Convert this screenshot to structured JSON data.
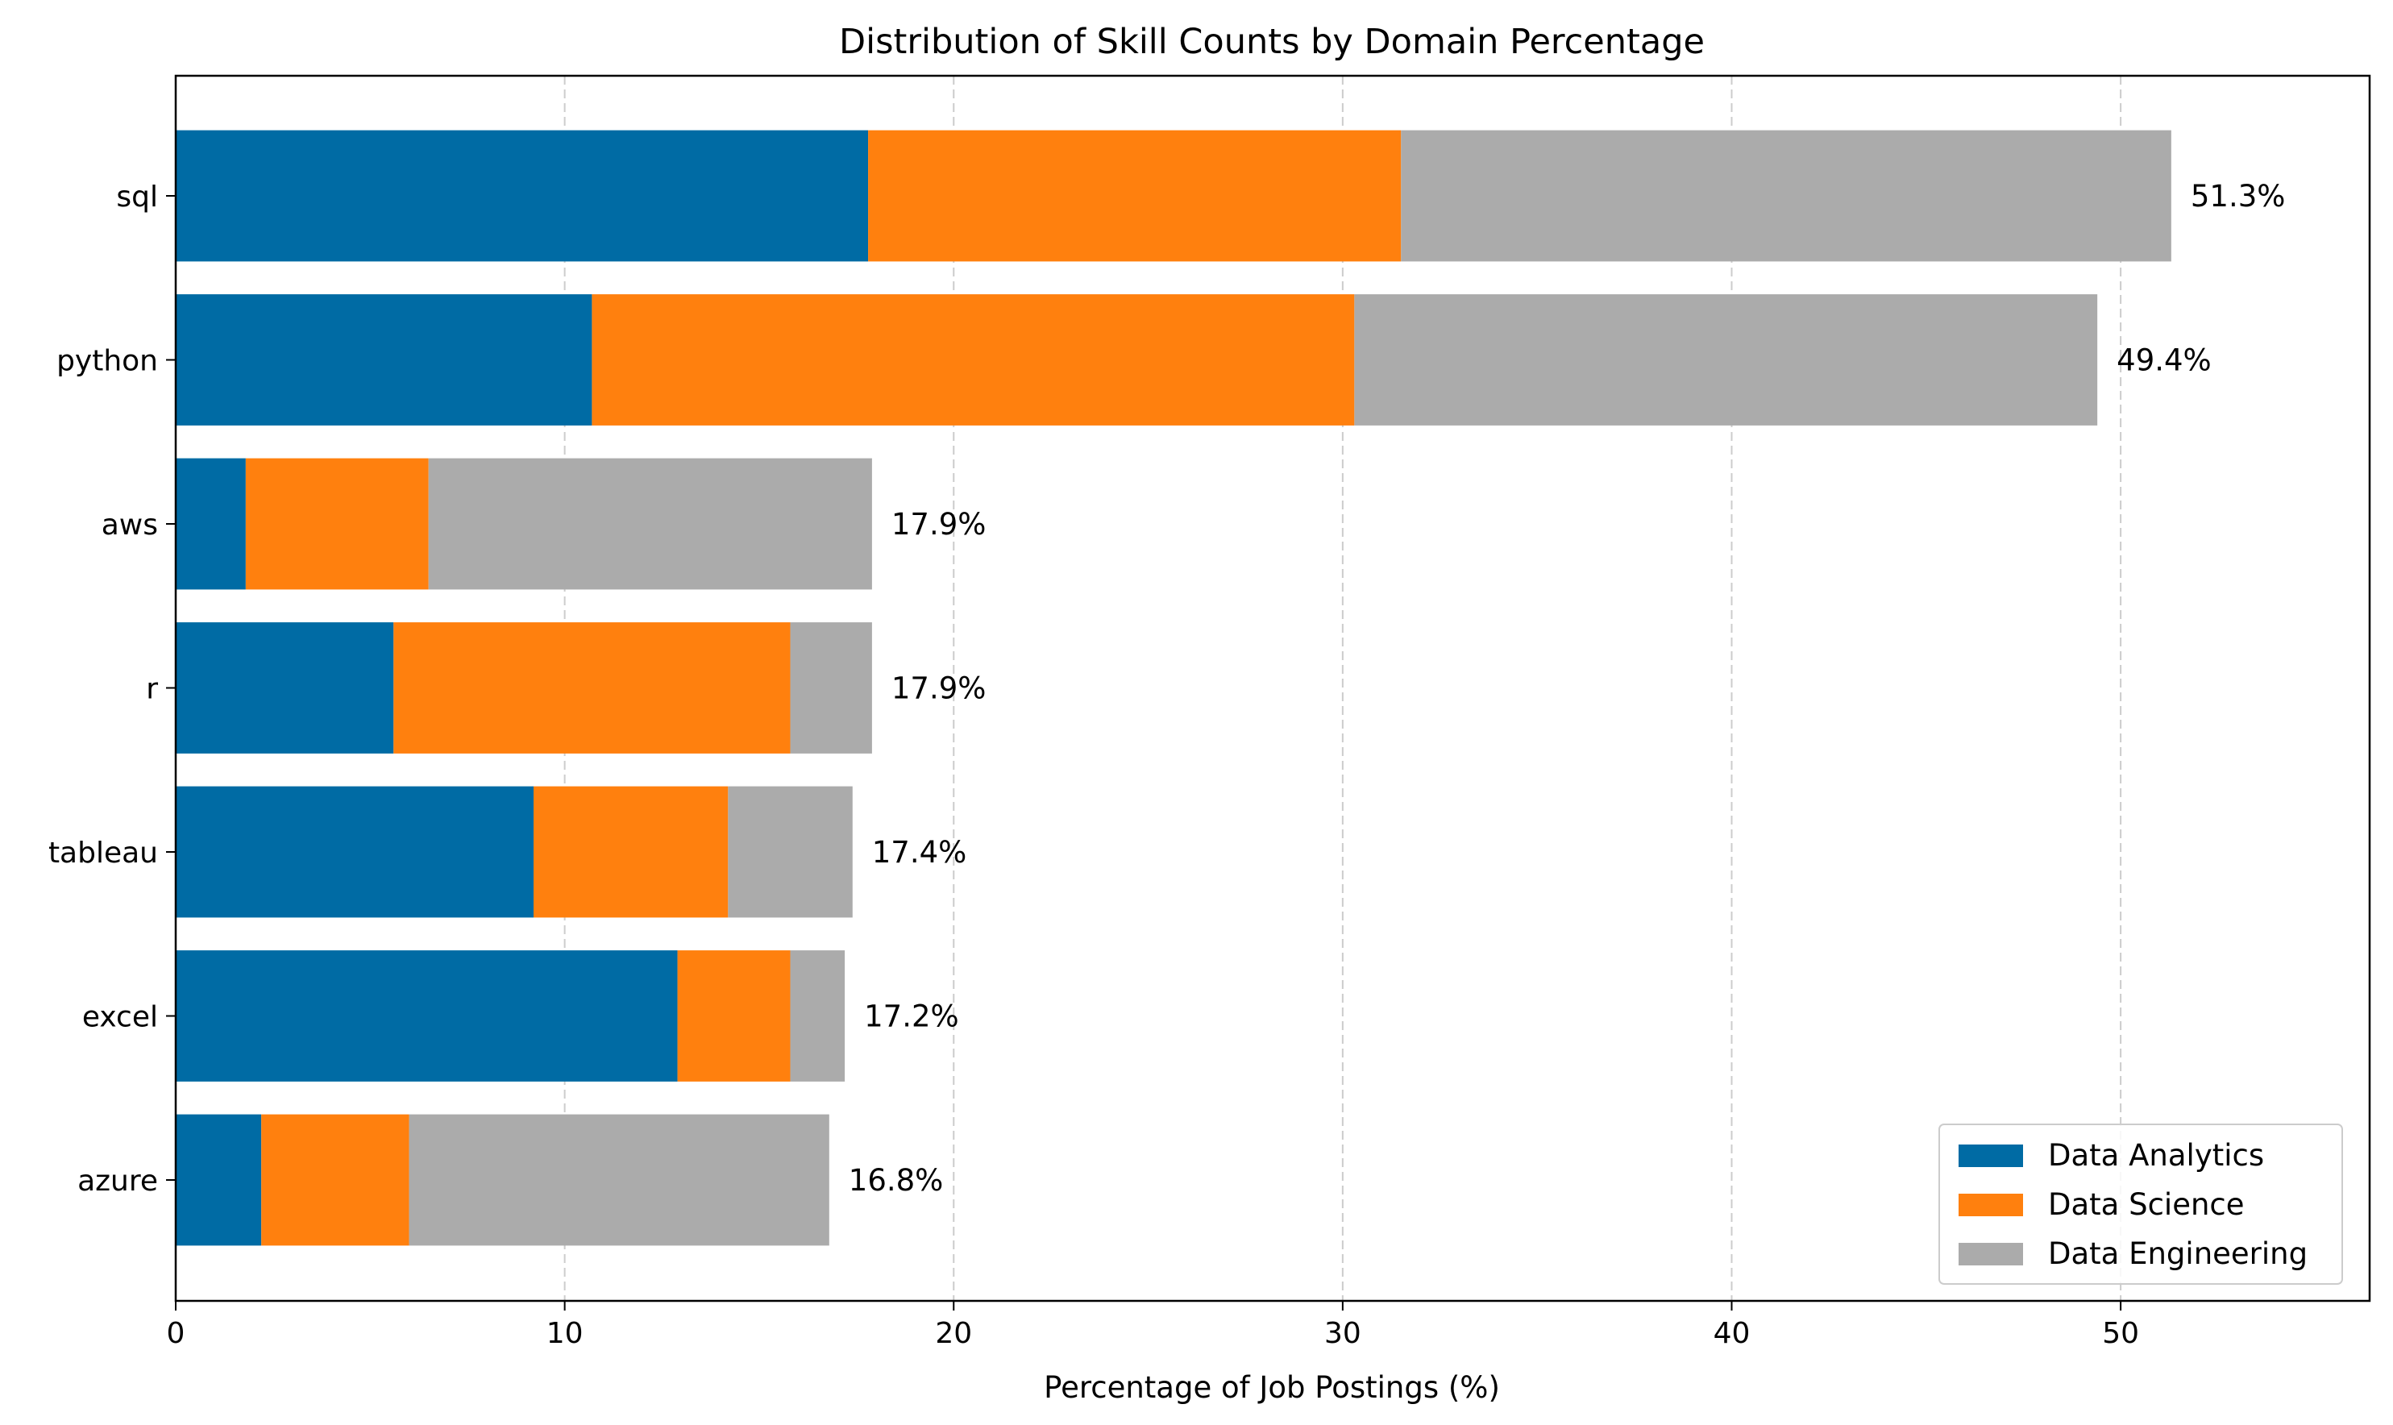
{
  "chart_data": {
    "type": "bar",
    "orientation": "horizontal",
    "stacked": true,
    "title": "Distribution of Skill Counts by Domain Percentage",
    "xlabel": "Percentage of Job Postings (%)",
    "ylabel": "",
    "xlim": [
      0,
      56.4
    ],
    "xticks": [
      0,
      10,
      20,
      30,
      40,
      50
    ],
    "grid": "x-dashed",
    "legend_position": "lower-right",
    "categories": [
      "sql",
      "python",
      "aws",
      "r",
      "tableau",
      "excel",
      "azure"
    ],
    "series": [
      {
        "name": "Data Analytics",
        "color": "#006ba4",
        "values": [
          17.8,
          10.7,
          1.8,
          5.6,
          9.2,
          12.9,
          2.2
        ]
      },
      {
        "name": "Data Science",
        "color": "#ff800e",
        "values": [
          13.7,
          19.6,
          4.7,
          10.2,
          5.0,
          2.9,
          3.8
        ]
      },
      {
        "name": "Data Engineering",
        "color": "#ababab",
        "values": [
          19.8,
          19.1,
          11.4,
          2.1,
          3.2,
          1.4,
          10.8
        ]
      }
    ],
    "total_labels": [
      "51.3%",
      "49.4%",
      "17.9%",
      "17.9%",
      "17.4%",
      "17.2%",
      "16.8%"
    ]
  }
}
